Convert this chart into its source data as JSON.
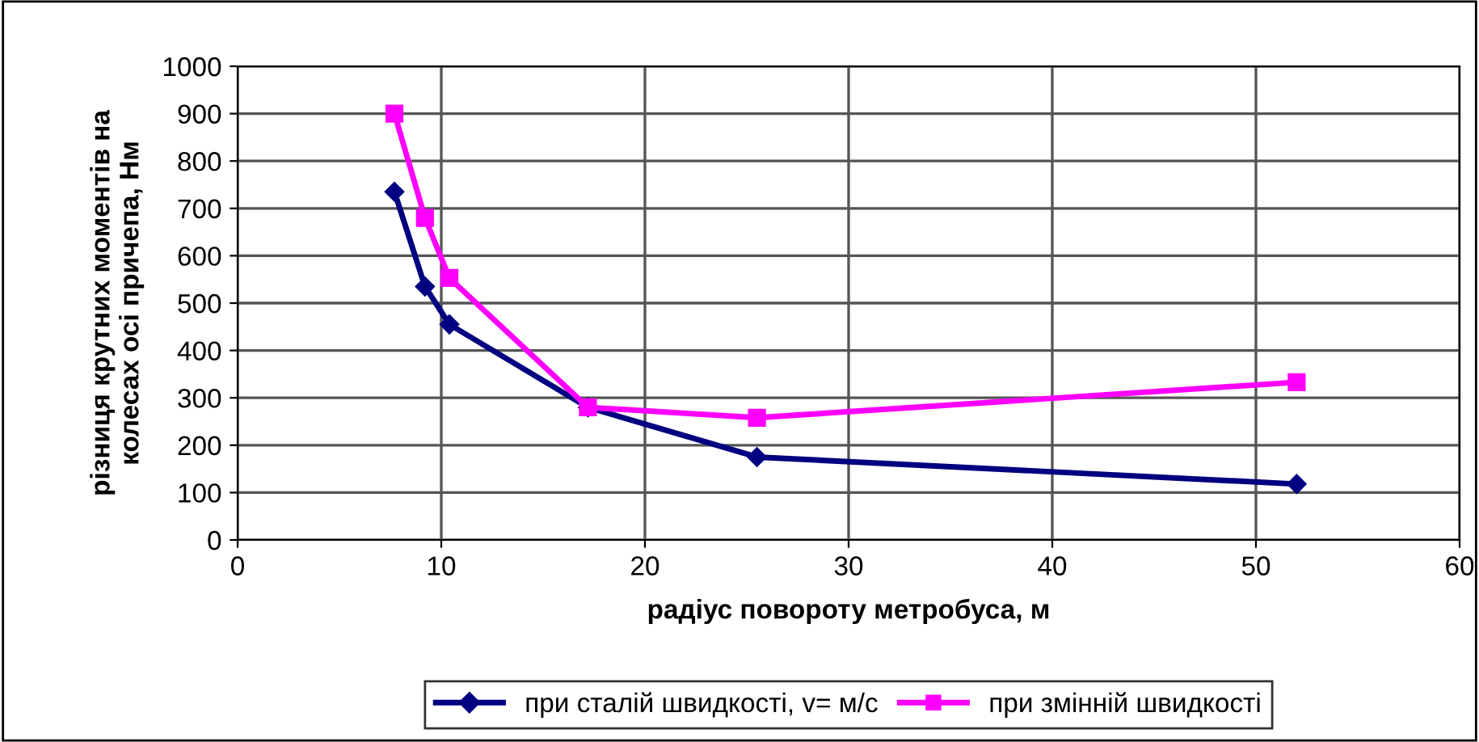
{
  "chart_data": {
    "type": "line",
    "xlabel": "радіус повороту метробуса, м",
    "ylabel": "різниця крутних моментів на\nколесах осі причепа, Нм",
    "xlim": [
      0,
      60
    ],
    "xticks": [
      0,
      10,
      20,
      30,
      40,
      50,
      60
    ],
    "ylim": [
      0,
      1000
    ],
    "yticks": [
      0,
      100,
      200,
      300,
      400,
      500,
      600,
      700,
      800,
      900,
      1000
    ],
    "grid": true,
    "legend": "bottom",
    "line_style": "solid",
    "series": [
      {
        "name": "при сталій швидкості, v= м/с",
        "color": "#000080",
        "marker": "diamond",
        "x": [
          7.7,
          9.2,
          10.4,
          17.2,
          25.5,
          52
        ],
        "values": [
          735,
          535,
          455,
          280,
          175,
          118
        ]
      },
      {
        "name": "при змінній швидкості",
        "color": "#ff00ff",
        "marker": "square",
        "x": [
          7.7,
          9.2,
          10.4,
          17.2,
          25.5,
          52
        ],
        "values": [
          900,
          680,
          553,
          280,
          258,
          333
        ]
      }
    ]
  }
}
